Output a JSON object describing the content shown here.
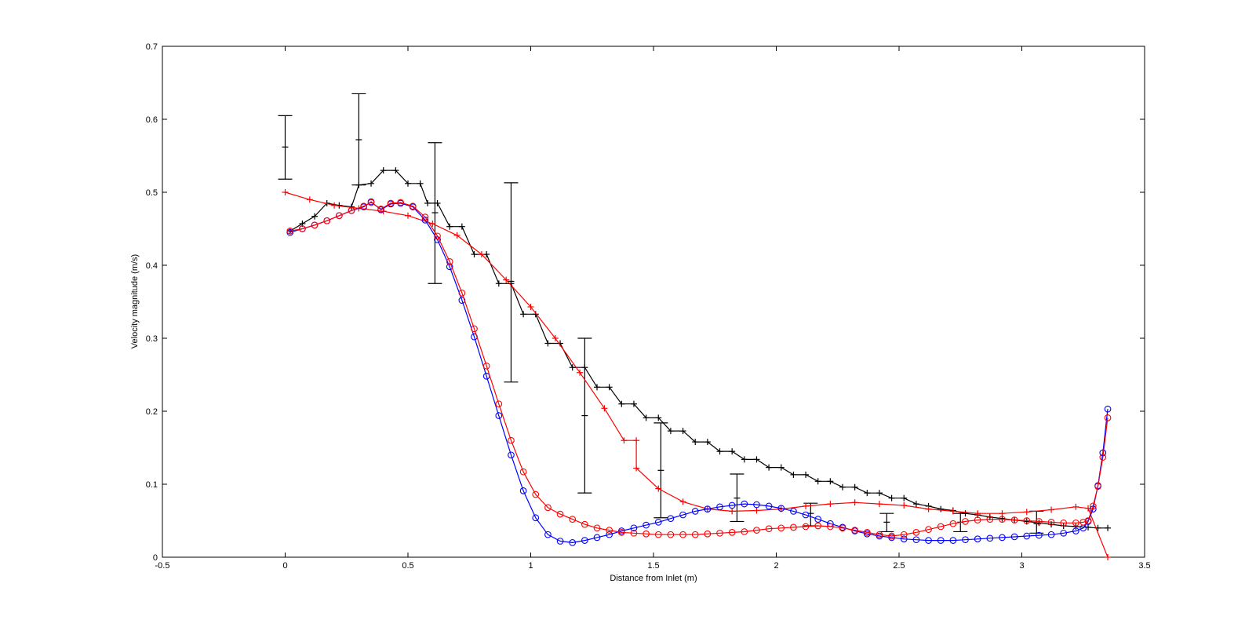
{
  "chart_data": {
    "type": "line",
    "title": "",
    "xlabel": "Distance from Inlet (m)",
    "ylabel": "Velocity magnitude (m/s)",
    "xlim": [
      -0.5,
      3.5
    ],
    "ylim": [
      0,
      0.7
    ],
    "xticks": [
      "-0.5",
      "0",
      "0.5",
      "1",
      "1.5",
      "2",
      "2.5",
      "3",
      "3.5"
    ],
    "yticks": [
      "0",
      "0.1",
      "0.2",
      "0.3",
      "0.4",
      "0.5",
      "0.6",
      "0.7"
    ],
    "grid": false,
    "legend": "none",
    "series": [
      {
        "color": "#000000",
        "marker": "plus",
        "x": [
          0.02,
          0.07,
          0.12,
          0.17,
          0.22,
          0.27,
          0.3,
          0.35,
          0.4,
          0.45,
          0.5,
          0.55,
          0.58,
          0.62,
          0.67,
          0.72,
          0.77,
          0.82,
          0.87,
          0.92,
          0.97,
          1.02,
          1.07,
          1.12,
          1.17,
          1.22,
          1.27,
          1.32,
          1.37,
          1.42,
          1.47,
          1.52,
          1.57,
          1.62,
          1.67,
          1.72,
          1.77,
          1.82,
          1.87,
          1.92,
          1.97,
          2.02,
          2.07,
          2.12,
          2.17,
          2.22,
          2.27,
          2.32,
          2.37,
          2.42,
          2.47,
          2.52,
          2.57,
          2.62,
          2.67,
          2.72,
          2.77,
          2.82,
          2.87,
          2.92,
          2.97,
          3.02,
          3.07,
          3.12,
          3.17,
          3.22,
          3.27,
          3.31,
          3.35
        ],
        "y": [
          0.447,
          0.457,
          0.467,
          0.485,
          0.482,
          0.48,
          0.51,
          0.512,
          0.53,
          0.53,
          0.512,
          0.512,
          0.485,
          0.485,
          0.453,
          0.453,
          0.415,
          0.415,
          0.375,
          0.375,
          0.333,
          0.333,
          0.293,
          0.293,
          0.26,
          0.26,
          0.233,
          0.233,
          0.21,
          0.21,
          0.191,
          0.191,
          0.173,
          0.173,
          0.158,
          0.158,
          0.145,
          0.145,
          0.134,
          0.134,
          0.123,
          0.123,
          0.113,
          0.113,
          0.104,
          0.104,
          0.096,
          0.096,
          0.088,
          0.088,
          0.081,
          0.081,
          0.073,
          0.07,
          0.066,
          0.064,
          0.06,
          0.058,
          0.055,
          0.053,
          0.051,
          0.049,
          0.047,
          0.045,
          0.043,
          0.042,
          0.041,
          0.04,
          0.04
        ]
      },
      {
        "color": "#ff0000",
        "marker": "plus",
        "x": [
          0.0,
          0.1,
          0.2,
          0.3,
          0.4,
          0.5,
          0.6,
          0.7,
          0.8,
          0.9,
          1.0,
          1.1,
          1.2,
          1.3,
          1.38,
          1.43,
          1.43,
          1.52,
          1.62,
          1.72,
          1.82,
          1.92,
          2.02,
          2.12,
          2.22,
          2.32,
          2.42,
          2.52,
          2.62,
          2.72,
          2.82,
          2.92,
          3.02,
          3.12,
          3.22,
          3.27,
          3.35
        ],
        "y": [
          0.5,
          0.49,
          0.482,
          0.478,
          0.474,
          0.468,
          0.457,
          0.441,
          0.415,
          0.38,
          0.343,
          0.3,
          0.253,
          0.204,
          0.16,
          0.16,
          0.122,
          0.094,
          0.076,
          0.066,
          0.063,
          0.064,
          0.066,
          0.07,
          0.073,
          0.075,
          0.073,
          0.071,
          0.066,
          0.063,
          0.06,
          0.06,
          0.062,
          0.065,
          0.069,
          0.067,
          0.0
        ]
      },
      {
        "color": "#0000ff",
        "marker": "circle",
        "x": [
          0.02,
          0.07,
          0.12,
          0.17,
          0.22,
          0.27,
          0.32,
          0.35,
          0.39,
          0.43,
          0.47,
          0.52,
          0.57,
          0.62,
          0.67,
          0.72,
          0.77,
          0.82,
          0.87,
          0.92,
          0.97,
          1.02,
          1.07,
          1.12,
          1.17,
          1.22,
          1.27,
          1.32,
          1.37,
          1.42,
          1.47,
          1.52,
          1.57,
          1.62,
          1.67,
          1.72,
          1.77,
          1.82,
          1.87,
          1.92,
          1.97,
          2.02,
          2.07,
          2.12,
          2.17,
          2.22,
          2.27,
          2.32,
          2.37,
          2.42,
          2.47,
          2.52,
          2.57,
          2.62,
          2.67,
          2.72,
          2.77,
          2.82,
          2.87,
          2.92,
          2.97,
          3.02,
          3.07,
          3.12,
          3.17,
          3.22,
          3.25,
          3.27,
          3.29,
          3.31,
          3.33,
          3.35
        ],
        "y": [
          0.445,
          0.45,
          0.455,
          0.461,
          0.468,
          0.475,
          0.48,
          0.487,
          0.476,
          0.484,
          0.485,
          0.48,
          0.462,
          0.435,
          0.398,
          0.352,
          0.302,
          0.248,
          0.194,
          0.14,
          0.091,
          0.054,
          0.031,
          0.022,
          0.02,
          0.023,
          0.027,
          0.031,
          0.036,
          0.04,
          0.044,
          0.048,
          0.053,
          0.058,
          0.063,
          0.066,
          0.069,
          0.071,
          0.073,
          0.072,
          0.07,
          0.067,
          0.063,
          0.058,
          0.052,
          0.046,
          0.041,
          0.036,
          0.032,
          0.029,
          0.027,
          0.025,
          0.024,
          0.023,
          0.023,
          0.023,
          0.024,
          0.025,
          0.026,
          0.027,
          0.028,
          0.029,
          0.03,
          0.031,
          0.033,
          0.036,
          0.04,
          0.049,
          0.066,
          0.098,
          0.143,
          0.203
        ]
      },
      {
        "color": "#ff0000",
        "marker": "circle",
        "x": [
          0.02,
          0.07,
          0.12,
          0.17,
          0.22,
          0.27,
          0.32,
          0.35,
          0.39,
          0.43,
          0.47,
          0.52,
          0.57,
          0.62,
          0.67,
          0.72,
          0.77,
          0.82,
          0.87,
          0.92,
          0.97,
          1.02,
          1.07,
          1.12,
          1.17,
          1.22,
          1.27,
          1.32,
          1.37,
          1.42,
          1.47,
          1.52,
          1.57,
          1.62,
          1.67,
          1.72,
          1.77,
          1.82,
          1.87,
          1.92,
          1.97,
          2.02,
          2.07,
          2.12,
          2.17,
          2.22,
          2.27,
          2.32,
          2.37,
          2.42,
          2.47,
          2.52,
          2.57,
          2.62,
          2.67,
          2.72,
          2.77,
          2.82,
          2.87,
          2.92,
          2.97,
          3.02,
          3.07,
          3.12,
          3.17,
          3.22,
          3.25,
          3.27,
          3.29,
          3.31,
          3.33,
          3.35
        ],
        "y": [
          0.447,
          0.45,
          0.455,
          0.461,
          0.468,
          0.475,
          0.481,
          0.486,
          0.477,
          0.485,
          0.486,
          0.481,
          0.466,
          0.44,
          0.405,
          0.362,
          0.313,
          0.262,
          0.21,
          0.16,
          0.117,
          0.086,
          0.068,
          0.059,
          0.052,
          0.045,
          0.04,
          0.037,
          0.034,
          0.033,
          0.032,
          0.031,
          0.031,
          0.031,
          0.031,
          0.032,
          0.033,
          0.034,
          0.035,
          0.037,
          0.039,
          0.04,
          0.041,
          0.042,
          0.043,
          0.042,
          0.04,
          0.037,
          0.034,
          0.031,
          0.029,
          0.031,
          0.034,
          0.038,
          0.042,
          0.046,
          0.049,
          0.051,
          0.052,
          0.052,
          0.051,
          0.05,
          0.049,
          0.048,
          0.047,
          0.047,
          0.048,
          0.05,
          0.07,
          0.097,
          0.137,
          0.191
        ]
      }
    ],
    "error_bars": [
      {
        "x": 0.0,
        "y": 0.562,
        "low": 0.518,
        "high": 0.605
      },
      {
        "x": 0.3,
        "y": 0.572,
        "low": 0.51,
        "high": 0.635
      },
      {
        "x": 0.61,
        "y": 0.472,
        "low": 0.375,
        "high": 0.568
      },
      {
        "x": 0.92,
        "y": 0.378,
        "low": 0.24,
        "high": 0.513
      },
      {
        "x": 1.22,
        "y": 0.194,
        "low": 0.088,
        "high": 0.3
      },
      {
        "x": 1.53,
        "y": 0.119,
        "low": 0.054,
        "high": 0.184
      },
      {
        "x": 1.84,
        "y": 0.081,
        "low": 0.049,
        "high": 0.114
      },
      {
        "x": 2.14,
        "y": 0.06,
        "low": 0.043,
        "high": 0.074
      },
      {
        "x": 2.45,
        "y": 0.048,
        "low": 0.035,
        "high": 0.06
      },
      {
        "x": 2.75,
        "y": 0.048,
        "low": 0.035,
        "high": 0.06
      },
      {
        "x": 3.06,
        "y": 0.046,
        "low": 0.033,
        "high": 0.063
      }
    ]
  }
}
